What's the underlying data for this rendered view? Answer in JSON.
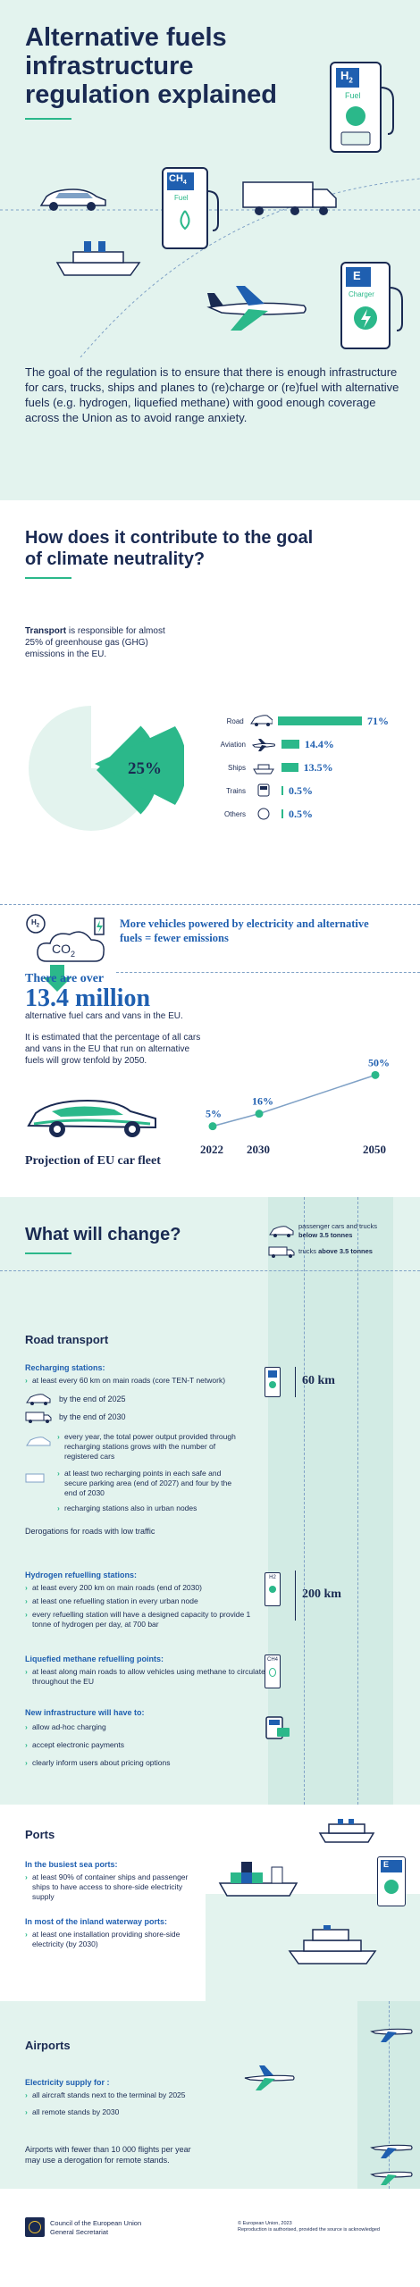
{
  "header": {
    "title_lines": [
      "Alternative fuels",
      "infrastructure",
      "regulation explained"
    ],
    "intro": "The goal of the regulation is to ensure that there is enough infrastructure for cars, trucks, ships and planes to (re)charge or (re)fuel with alternative fuels (e.g. hydrogen, liquefied methane) with good enough coverage across the Union as to avoid range anxiety.",
    "stations": {
      "h2_symbol": "H",
      "h2_sub": "2",
      "h2_label": "Fuel",
      "ch4_symbol": "CH",
      "ch4_sub": "4",
      "ch4_label": "Fuel",
      "e_symbol": "E",
      "e_label": "Charger"
    }
  },
  "climate": {
    "heading": "How does it contribute to the goal of climate neutrality?",
    "transport_bold": "Transport",
    "transport_rest": " is responsible for almost 25% of greenhouse gas (GHG) emissions in the EU.",
    "pie_label": "25%",
    "colors": {
      "accent": "#2bb88a",
      "navy": "#1a2a52",
      "mint": "#e3f3ee",
      "blue": "#1f5fb0"
    },
    "chart_data": {
      "type": "bar",
      "categories": [
        "Road",
        "Aviation",
        "Ships",
        "Trains",
        "Others"
      ],
      "values": [
        71,
        14.4,
        13.5,
        0.5,
        0.5
      ],
      "value_labels": [
        "71%",
        "14.4%",
        "13.5%",
        "0.5%",
        "0.5%"
      ],
      "icons": [
        "car-icon",
        "plane-icon",
        "ship-icon",
        "train-icon",
        "circle-icon"
      ],
      "xlim": [
        0,
        71
      ]
    },
    "more_vehicles": "More vehicles powered by electricity and alternative fuels = fewer emissions",
    "co2_label": "CO",
    "co2_sub": "2",
    "h2_tag": "H",
    "h2_tag_sub": "2",
    "over_label": "There are over",
    "million": "13.4 million",
    "fleet_desc": "alternative fuel cars and vans in the EU.",
    "estimate": "It is estimated that the percentage of all cars and vans in the EU that run on alternative fuels will grow tenfold by 2050.",
    "projection_title": "Projection of EU car fleet",
    "projection": {
      "type": "line",
      "x": [
        "2022",
        "2030",
        "2050"
      ],
      "values": [
        5,
        16,
        50
      ],
      "labels": [
        "5%",
        "16%",
        "50%"
      ]
    }
  },
  "change": {
    "heading": "What will change?",
    "legend_cars": "passenger cars and trucks",
    "legend_cars_bold": "below 3.5 tonnes",
    "legend_trucks": "trucks ",
    "legend_trucks_bold": "above 3.5 tonnes",
    "road_title": "Road transport",
    "recharging_title": "Recharging stations:",
    "recharging_line": "at least every 60 km on main roads (core TEN-T network)",
    "by2025": "by the end of 2025",
    "by2030": "by the end of 2030",
    "km60": "60 km",
    "power_output": "every year, the total power output provided through recharging stations grows with the number of registered cars",
    "two_points": "at least two recharging points in each safe and secure parking area (end of 2027) and four by the end of 2030",
    "urban": "recharging stations also in urban nodes",
    "derogations": "Derogations for roads with low traffic",
    "hydrogen_title": "Hydrogen refuelling stations:",
    "hydrogen_1": "at least every 200 km on main roads (end of 2030)",
    "hydrogen_2": "at least one refuelling station in every urban node",
    "hydrogen_3": "every refuelling station will have a designed capacity to provide 1 tonne of hydrogen per day, at 700 bar",
    "km200": "200 km",
    "lm_title": "Liquefied methane refuelling points:",
    "lm_1": "at least along main roads to allow vehicles using methane to circulate throughout the EU",
    "new_title": "New infrastructure will have to:",
    "new_1": "allow ad-hoc charging",
    "new_2": "accept electronic payments",
    "new_3": "clearly inform users about pricing options",
    "h2_small": "H2",
    "ch4_small": "CH4"
  },
  "ports": {
    "title": "Ports",
    "busiest_title": "In the busiest sea ports:",
    "busiest_1": "at least 90% of container ships and passenger ships to have access to shore-side electricity supply",
    "inland_title": "In most of the inland waterway ports:",
    "inland_1": "at least one installation providing shore-side electricity (by 2030)",
    "e_symbol": "E"
  },
  "airports": {
    "title": "Airports",
    "supply_title": "Electricity supply for :",
    "supply_1": "all aircraft stands next to the terminal by 2025",
    "supply_2": "all remote stands by 2030",
    "note": "Airports with fewer than 10 000 flights per year may use a derogation for remote stands."
  },
  "footer": {
    "org_1": "Council of the European Union",
    "org_2": "General Secretariat",
    "copyright": "© European Union, 2023",
    "reproduction": "Reproduction is authorised, provided the source is acknowledged"
  }
}
